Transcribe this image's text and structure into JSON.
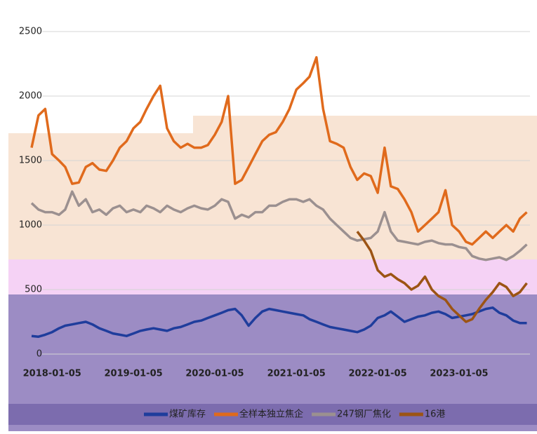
{
  "chart_data": {
    "type": "line",
    "x": [
      "2017-10-05",
      "2017-11-05",
      "2017-12-05",
      "2018-01-05",
      "2018-02-05",
      "2018-03-05",
      "2018-04-05",
      "2018-05-05",
      "2018-06-05",
      "2018-07-05",
      "2018-08-05",
      "2018-09-05",
      "2018-10-05",
      "2018-11-05",
      "2018-12-05",
      "2019-01-05",
      "2019-02-05",
      "2019-03-05",
      "2019-04-05",
      "2019-05-05",
      "2019-06-05",
      "2019-07-05",
      "2019-08-05",
      "2019-09-05",
      "2019-10-05",
      "2019-11-05",
      "2019-12-05",
      "2020-01-05",
      "2020-02-05",
      "2020-03-05",
      "2020-04-05",
      "2020-05-05",
      "2020-06-05",
      "2020-07-05",
      "2020-08-05",
      "2020-09-05",
      "2020-10-05",
      "2020-11-05",
      "2020-12-05",
      "2021-01-05",
      "2021-02-05",
      "2021-03-05",
      "2021-04-05",
      "2021-05-05",
      "2021-06-05",
      "2021-07-05",
      "2021-08-05",
      "2021-09-05",
      "2021-10-05",
      "2021-11-05",
      "2021-12-05",
      "2022-01-05",
      "2022-02-05",
      "2022-03-05",
      "2022-04-05",
      "2022-05-05",
      "2022-06-05",
      "2022-07-05",
      "2022-08-05",
      "2022-09-05",
      "2022-10-05",
      "2022-11-05",
      "2022-12-05",
      "2023-01-05",
      "2023-02-05",
      "2023-03-05",
      "2023-04-05",
      "2023-05-05",
      "2023-06-05",
      "2023-07-05",
      "2023-08-05",
      "2023-09-05",
      "2023-10-05",
      "2023-11-05"
    ],
    "xlim": [
      "2017-10-05",
      "2023-12-05"
    ],
    "xticks": [
      "2018-01-05",
      "2019-01-05",
      "2020-01-05",
      "2021-01-05",
      "2022-01-05",
      "2023-01-05"
    ],
    "ylim": [
      0,
      2500
    ],
    "yticks": [
      0,
      500,
      1000,
      1500,
      2000,
      2500
    ],
    "grid": true,
    "legend": "bottom",
    "series": [
      {
        "name": "煤矿库存",
        "color": "#1f3d9c",
        "values": [
          140,
          135,
          150,
          170,
          200,
          220,
          230,
          240,
          250,
          230,
          200,
          180,
          160,
          150,
          140,
          160,
          180,
          190,
          200,
          190,
          180,
          200,
          210,
          230,
          250,
          260,
          280,
          300,
          320,
          340,
          350,
          300,
          220,
          280,
          330,
          350,
          340,
          330,
          320,
          310,
          300,
          270,
          250,
          230,
          210,
          200,
          190,
          180,
          170,
          190,
          220,
          280,
          300,
          330,
          290,
          250,
          270,
          290,
          300,
          320,
          330,
          310,
          280,
          290,
          300,
          310,
          330,
          350,
          360,
          320,
          300,
          260,
          240,
          240
        ]
      },
      {
        "name": "全样本独立焦企",
        "color": "#e06a1c",
        "values": [
          1600,
          1850,
          1900,
          1550,
          1500,
          1450,
          1320,
          1330,
          1450,
          1480,
          1430,
          1420,
          1500,
          1600,
          1650,
          1750,
          1800,
          1900,
          2000,
          2080,
          1750,
          1650,
          1600,
          1630,
          1600,
          1600,
          1620,
          1700,
          1800,
          2000,
          1320,
          1350,
          1450,
          1550,
          1650,
          1700,
          1720,
          1800,
          1900,
          2050,
          2100,
          2150,
          2300,
          1900,
          1650,
          1630,
          1600,
          1450,
          1350,
          1400,
          1380,
          1250,
          1600,
          1300,
          1280,
          1200,
          1100,
          950,
          1000,
          1050,
          1100,
          1270,
          1000,
          950,
          870,
          850,
          900,
          950,
          900,
          950,
          1000,
          950,
          1050,
          1100
        ]
      },
      {
        "name": "247钢厂焦化",
        "color": "#9b9090",
        "values": [
          1170,
          1120,
          1100,
          1100,
          1080,
          1120,
          1260,
          1150,
          1200,
          1100,
          1120,
          1080,
          1130,
          1150,
          1100,
          1120,
          1100,
          1150,
          1130,
          1100,
          1150,
          1120,
          1100,
          1130,
          1150,
          1130,
          1120,
          1150,
          1200,
          1180,
          1050,
          1080,
          1060,
          1100,
          1100,
          1150,
          1150,
          1180,
          1200,
          1200,
          1180,
          1200,
          1150,
          1120,
          1050,
          1000,
          950,
          900,
          880,
          890,
          900,
          950,
          1100,
          950,
          880,
          870,
          860,
          850,
          870,
          880,
          860,
          850,
          850,
          830,
          820,
          760,
          740,
          730,
          740,
          750,
          730,
          760,
          800,
          850
        ]
      },
      {
        "name": "16港",
        "color": "#9c5414",
        "values": [
          null,
          null,
          null,
          null,
          null,
          null,
          null,
          null,
          null,
          null,
          null,
          null,
          null,
          null,
          null,
          null,
          null,
          null,
          null,
          null,
          null,
          null,
          null,
          null,
          null,
          null,
          null,
          null,
          null,
          null,
          null,
          null,
          null,
          null,
          null,
          null,
          null,
          null,
          null,
          null,
          null,
          null,
          null,
          null,
          null,
          null,
          null,
          null,
          950,
          880,
          800,
          650,
          600,
          620,
          580,
          550,
          500,
          530,
          600,
          500,
          450,
          420,
          350,
          300,
          250,
          270,
          350,
          420,
          480,
          550,
          520,
          450,
          480,
          550
        ]
      }
    ]
  }
}
